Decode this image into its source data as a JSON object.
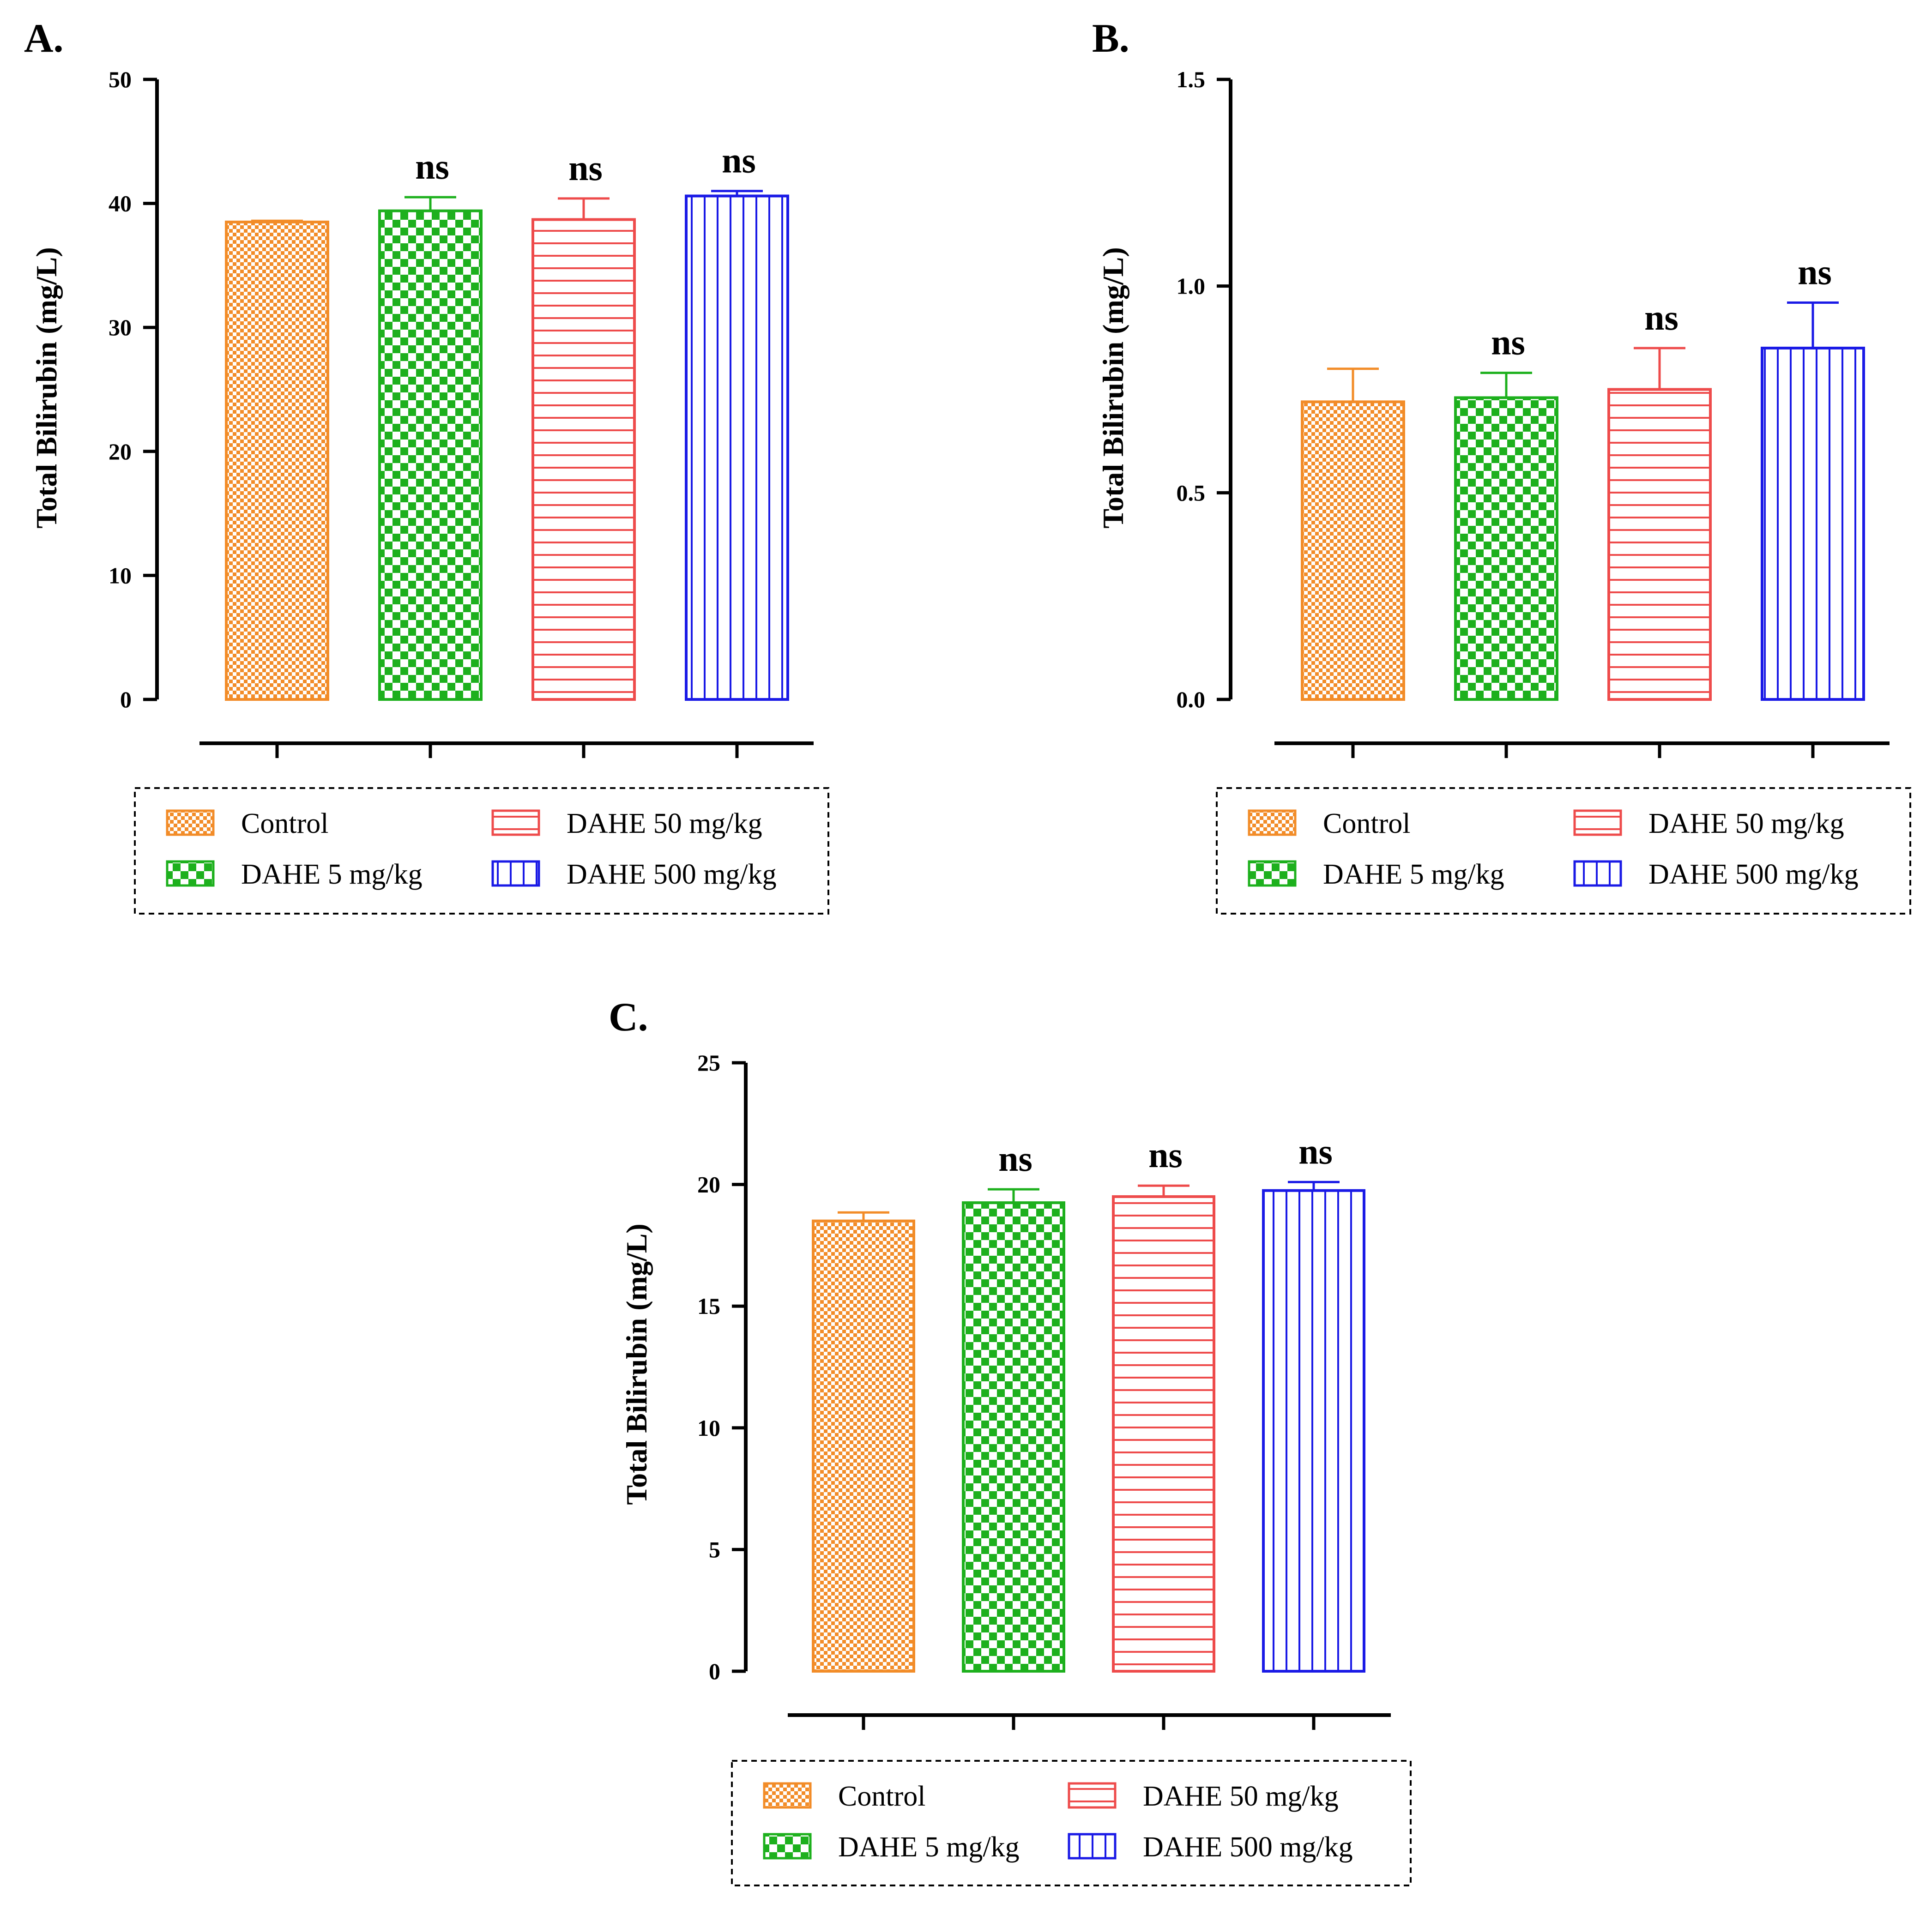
{
  "series_styles": [
    {
      "name": "Control",
      "color": "#F28C28",
      "pattern": "checker-fine"
    },
    {
      "name": "DAHE 5 mg/kg",
      "color": "#1DB01D",
      "pattern": "checker-coarse"
    },
    {
      "name": "DAHE 50 mg/kg",
      "color": "#EE4B4B",
      "pattern": "horizontal-lines"
    },
    {
      "name": "DAHE 500 mg/kg",
      "color": "#1A1AE6",
      "pattern": "vertical-lines"
    }
  ],
  "chart_data": [
    {
      "panel": "A.",
      "type": "bar",
      "ylabel": "Total Bilirubin (mg/L)",
      "ylim": [
        0,
        50
      ],
      "yticks": [
        "0",
        "10",
        "20",
        "30",
        "40",
        "50"
      ],
      "categories": [
        "Control",
        "DAHE 5 mg/kg",
        "DAHE 50 mg/kg",
        "DAHE 500 mg/kg"
      ],
      "values": [
        38.5,
        39.4,
        38.7,
        40.6
      ],
      "errors": [
        0.1,
        1.1,
        1.7,
        0.4
      ],
      "significance": [
        "",
        "ns",
        "ns",
        "ns"
      ],
      "legend": [
        "Control",
        "DAHE 5 mg/kg",
        "DAHE 50 mg/kg",
        "DAHE 500 mg/kg"
      ]
    },
    {
      "panel": "B.",
      "type": "bar",
      "ylabel": "Total Bilirubin (mg/L)",
      "ylim": [
        0,
        1.5
      ],
      "yticks": [
        "0.0",
        "0.5",
        "1.0",
        "1.5"
      ],
      "categories": [
        "Control",
        "DAHE 5 mg/kg",
        "DAHE 50 mg/kg",
        "DAHE 500 mg/kg"
      ],
      "values": [
        0.72,
        0.73,
        0.75,
        0.85
      ],
      "errors": [
        0.08,
        0.06,
        0.1,
        0.11
      ],
      "significance": [
        "",
        "ns",
        "ns",
        "ns"
      ],
      "legend": [
        "Control",
        "DAHE 5 mg/kg",
        "DAHE 50 mg/kg",
        "DAHE 500 mg/kg"
      ]
    },
    {
      "panel": "C.",
      "type": "bar",
      "ylabel": "Total Bilirubin (mg/L)",
      "ylim": [
        0,
        25
      ],
      "yticks": [
        "0",
        "5",
        "10",
        "15",
        "20",
        "25"
      ],
      "categories": [
        "Control",
        "DAHE 5 mg/kg",
        "DAHE 50 mg/kg",
        "DAHE 500 mg/kg"
      ],
      "values": [
        18.5,
        19.25,
        19.5,
        19.75
      ],
      "errors": [
        0.35,
        0.55,
        0.45,
        0.35
      ],
      "significance": [
        "",
        "ns",
        "ns",
        "ns"
      ],
      "legend": [
        "Control",
        "DAHE 5 mg/kg",
        "DAHE 50 mg/kg",
        "DAHE 500 mg/kg"
      ]
    }
  ]
}
